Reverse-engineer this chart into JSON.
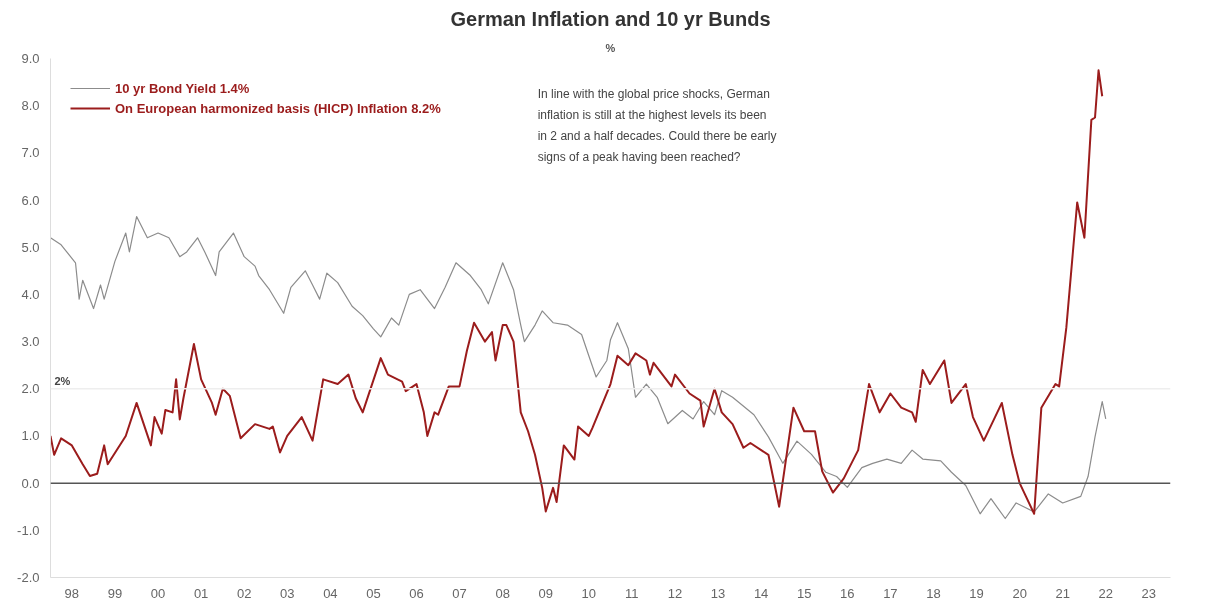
{
  "chart_data": {
    "type": "line",
    "title": "German Inflation and 10 yr Bunds",
    "subtitle": "%",
    "annotations": [
      "In line with the global price shocks, German inflation is still at the highest levels its been in 2 and a half decades. Could there be early signs of a peak having been reached?"
    ],
    "xlim": [
      "1998-01",
      "2024-01"
    ],
    "ylim": [
      -2,
      9
    ],
    "xticks": [
      {
        "value": "1998-07",
        "label": "98"
      },
      {
        "value": "1999-07",
        "label": "99"
      },
      {
        "value": "2000-07",
        "label": "00"
      },
      {
        "value": "2001-07",
        "label": "01"
      },
      {
        "value": "2002-07",
        "label": "02"
      },
      {
        "value": "2003-07",
        "label": "03"
      },
      {
        "value": "2004-07",
        "label": "04"
      },
      {
        "value": "2005-07",
        "label": "05"
      },
      {
        "value": "2006-07",
        "label": "06"
      },
      {
        "value": "2007-07",
        "label": "07"
      },
      {
        "value": "2008-07",
        "label": "08"
      },
      {
        "value": "2009-07",
        "label": "09"
      },
      {
        "value": "2010-07",
        "label": "10"
      },
      {
        "value": "2011-07",
        "label": "11"
      },
      {
        "value": "2012-07",
        "label": "12"
      },
      {
        "value": "2013-07",
        "label": "13"
      },
      {
        "value": "2014-07",
        "label": "14"
      },
      {
        "value": "2015-07",
        "label": "15"
      },
      {
        "value": "2016-07",
        "label": "16"
      },
      {
        "value": "2017-07",
        "label": "17"
      },
      {
        "value": "2018-07",
        "label": "18"
      },
      {
        "value": "2019-07",
        "label": "19"
      },
      {
        "value": "2020-07",
        "label": "20"
      },
      {
        "value": "2021-07",
        "label": "21"
      },
      {
        "value": "2022-07",
        "label": "22"
      },
      {
        "value": "2023-07",
        "label": "23"
      }
    ],
    "yticks": [
      {
        "value": -2,
        "label": "-2.0"
      },
      {
        "value": -1,
        "label": "-1.0"
      },
      {
        "value": 0,
        "label": "0.0"
      },
      {
        "value": 1,
        "label": "1.0"
      },
      {
        "value": 2,
        "label": "2.0"
      },
      {
        "value": 3,
        "label": "3.0"
      },
      {
        "value": 4,
        "label": "4.0"
      },
      {
        "value": 5,
        "label": "5.0"
      },
      {
        "value": 6,
        "label": "6.0"
      },
      {
        "value": 7,
        "label": "7.0"
      },
      {
        "value": 8,
        "label": "8.0"
      },
      {
        "value": 9,
        "label": "9.0"
      }
    ],
    "grid": false,
    "legend": "top left",
    "marker": "none",
    "line_style": "solid",
    "ref_lines": [
      {
        "axis": "y",
        "value": 2,
        "label": "2%",
        "color": "#eeeeee"
      },
      {
        "axis": "y",
        "value": 0,
        "label": null,
        "color": "#555555"
      }
    ],
    "series": [
      {
        "name": "10 yr Bond Yield 1.4%",
        "color": "#8c8c8c",
        "x": [
          "1998-01",
          "1998-04",
          "1998-08",
          "1998-09",
          "1998-10",
          "1999-01",
          "1999-03",
          "1999-04",
          "1999-07",
          "1999-10",
          "1999-11",
          "2000-01",
          "2000-04",
          "2000-07",
          "2000-10",
          "2001-01",
          "2001-03",
          "2001-06",
          "2001-08",
          "2001-11",
          "2001-12",
          "2002-04",
          "2002-07",
          "2002-10",
          "2002-11",
          "2003-02",
          "2003-06",
          "2003-08",
          "2003-12",
          "2004-02",
          "2004-04",
          "2004-06",
          "2004-09",
          "2005-01",
          "2005-04",
          "2005-07",
          "2005-09",
          "2005-12",
          "2006-02",
          "2006-05",
          "2006-08",
          "2006-12",
          "2007-03",
          "2007-06",
          "2007-10",
          "2008-01",
          "2008-03",
          "2008-07",
          "2008-10",
          "2008-12",
          "2009-01",
          "2009-04",
          "2009-06",
          "2009-09",
          "2010-01",
          "2010-05",
          "2010-07",
          "2010-09",
          "2010-12",
          "2011-01",
          "2011-03",
          "2011-06",
          "2011-08",
          "2011-11",
          "2012-02",
          "2012-05",
          "2012-09",
          "2012-12",
          "2013-03",
          "2013-06",
          "2013-08",
          "2013-11",
          "2014-05",
          "2014-09",
          "2015-01",
          "2015-05",
          "2015-09",
          "2016-01",
          "2016-04",
          "2016-07",
          "2016-11",
          "2017-02",
          "2017-06",
          "2017-10",
          "2018-01",
          "2018-04",
          "2018-09",
          "2018-12",
          "2019-04",
          "2019-08",
          "2019-11",
          "2020-03",
          "2020-06",
          "2020-11",
          "2021-03",
          "2021-07",
          "2021-12",
          "2022-02",
          "2022-04",
          "2022-06",
          "2022-07"
        ],
        "values": [
          5.2,
          5.05,
          4.67,
          3.9,
          4.3,
          3.7,
          4.2,
          3.9,
          4.7,
          5.3,
          4.9,
          5.65,
          5.2,
          5.3,
          5.2,
          4.8,
          4.9,
          5.2,
          4.9,
          4.4,
          4.9,
          5.3,
          4.8,
          4.6,
          4.4,
          4.1,
          3.6,
          4.15,
          4.5,
          4.2,
          3.9,
          4.45,
          4.25,
          3.75,
          3.55,
          3.27,
          3.1,
          3.5,
          3.35,
          4.0,
          4.1,
          3.7,
          4.15,
          4.67,
          4.4,
          4.1,
          3.8,
          4.67,
          4.1,
          3.35,
          3.0,
          3.35,
          3.65,
          3.4,
          3.35,
          3.15,
          2.7,
          2.25,
          2.6,
          3.04,
          3.4,
          2.85,
          1.82,
          2.1,
          1.82,
          1.26,
          1.54,
          1.36,
          1.73,
          1.45,
          1.96,
          1.82,
          1.45,
          0.98,
          0.42,
          0.89,
          0.61,
          0.23,
          0.14,
          -0.09,
          0.33,
          0.42,
          0.51,
          0.42,
          0.7,
          0.51,
          0.47,
          0.23,
          -0.05,
          -0.65,
          -0.33,
          -0.75,
          -0.42,
          -0.61,
          -0.23,
          -0.42,
          -0.28,
          0.14,
          0.98,
          1.73,
          1.36
        ]
      },
      {
        "name": "On European harmonized basis (HICP) Inflation 8.2%",
        "color": "#9b1c1c",
        "x": [
          "1998-01",
          "1998-02",
          "1998-04",
          "1998-07",
          "1998-10",
          "1998-12",
          "1999-02",
          "1999-04",
          "1999-05",
          "1999-10",
          "2000-01",
          "2000-05",
          "2000-06",
          "2000-08",
          "2000-09",
          "2000-11",
          "2000-12",
          "2001-01",
          "2001-02",
          "2001-05",
          "2001-07",
          "2001-10",
          "2001-11",
          "2002-01",
          "2002-03",
          "2002-06",
          "2002-10",
          "2003-02",
          "2003-03",
          "2003-05",
          "2003-07",
          "2003-11",
          "2004-02",
          "2004-05",
          "2004-09",
          "2004-12",
          "2005-02",
          "2005-04",
          "2005-09",
          "2005-11",
          "2006-03",
          "2006-04",
          "2006-07",
          "2006-09",
          "2006-10",
          "2006-12",
          "2007-01",
          "2007-04",
          "2007-07",
          "2007-09",
          "2007-11",
          "2008-02",
          "2008-04",
          "2008-05",
          "2008-07",
          "2008-08",
          "2008-10",
          "2008-12",
          "2009-02",
          "2009-04",
          "2009-06",
          "2009-07",
          "2009-09",
          "2009-10",
          "2009-12",
          "2010-03",
          "2010-04",
          "2010-07",
          "2010-08",
          "2011-01",
          "2011-03",
          "2011-06",
          "2011-08",
          "2011-11",
          "2011-12",
          "2012-01",
          "2012-06",
          "2012-07",
          "2012-11",
          "2013-02",
          "2013-03",
          "2013-06",
          "2013-08",
          "2013-11",
          "2014-02",
          "2014-04",
          "2014-09",
          "2014-12",
          "2015-04",
          "2015-07",
          "2015-10",
          "2015-12",
          "2016-03",
          "2016-06",
          "2016-10",
          "2017-01",
          "2017-04",
          "2017-07",
          "2017-10",
          "2018-01",
          "2018-02",
          "2018-04",
          "2018-06",
          "2018-10",
          "2018-12",
          "2019-04",
          "2019-06",
          "2019-09",
          "2020-02",
          "2020-05",
          "2020-07",
          "2020-11",
          "2021-01",
          "2021-05",
          "2021-06",
          "2021-08",
          "2021-11",
          "2022-01",
          "2022-03",
          "2022-04",
          "2022-05",
          "2022-06"
        ],
        "values": [
          1.0,
          0.6,
          0.95,
          0.8,
          0.4,
          0.15,
          0.2,
          0.8,
          0.4,
          1.0,
          1.7,
          0.8,
          1.4,
          1.05,
          1.55,
          1.5,
          2.2,
          1.35,
          1.8,
          2.95,
          2.2,
          1.7,
          1.45,
          2.0,
          1.85,
          0.95,
          1.25,
          1.15,
          1.2,
          0.65,
          1.0,
          1.4,
          0.9,
          2.2,
          2.1,
          2.3,
          1.8,
          1.5,
          2.65,
          2.3,
          2.15,
          1.95,
          2.1,
          1.5,
          1.0,
          1.5,
          1.45,
          2.05,
          2.05,
          2.8,
          3.4,
          3.0,
          3.2,
          2.6,
          3.35,
          3.35,
          3.0,
          1.5,
          1.1,
          0.6,
          -0.1,
          -0.6,
          -0.1,
          -0.4,
          0.8,
          0.5,
          1.2,
          1.0,
          1.17,
          2.1,
          2.7,
          2.5,
          2.75,
          2.6,
          2.3,
          2.55,
          2.05,
          2.3,
          1.9,
          1.75,
          1.2,
          2.0,
          1.5,
          1.25,
          0.75,
          0.85,
          0.6,
          -0.5,
          1.6,
          1.1,
          1.1,
          0.25,
          -0.2,
          0.1,
          0.7,
          2.1,
          1.5,
          1.9,
          1.6,
          1.5,
          1.3,
          2.4,
          2.1,
          2.6,
          1.7,
          2.1,
          1.4,
          0.9,
          1.7,
          0.6,
          0.0,
          -0.65,
          1.6,
          2.1,
          2.05,
          3.3,
          5.95,
          5.2,
          7.7,
          7.75,
          8.75,
          8.2
        ]
      }
    ]
  }
}
